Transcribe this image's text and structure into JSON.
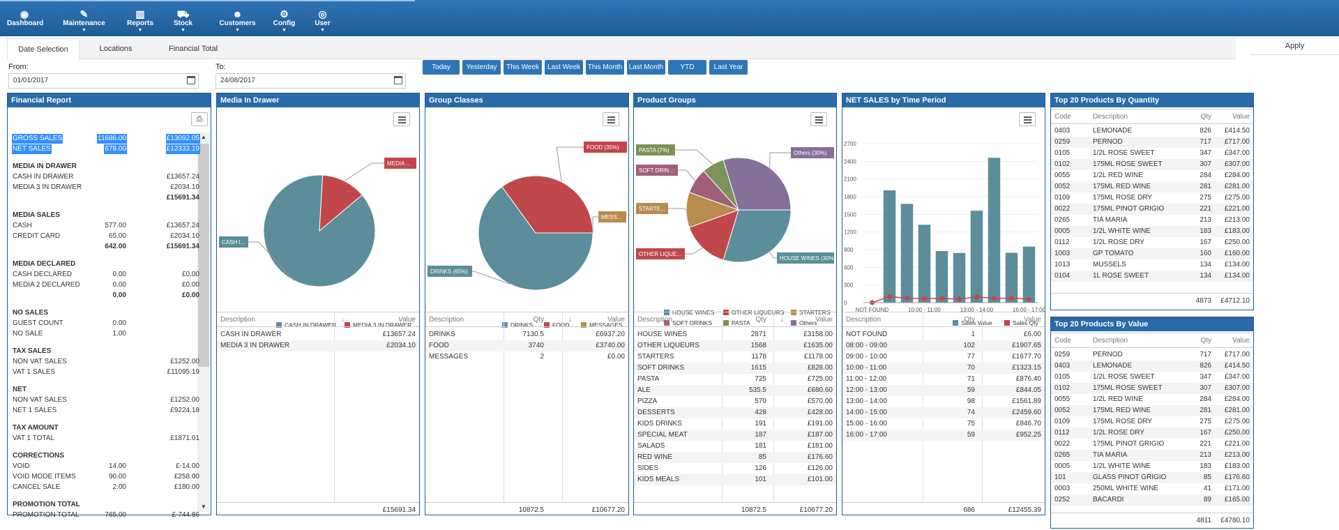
{
  "nav": [
    {
      "label": "Dashboard",
      "icon": "dashboard-icon",
      "glyph": "◉",
      "caret": false
    },
    {
      "label": "Maintenance",
      "icon": "wrench-icon",
      "glyph": "✎",
      "caret": true
    },
    {
      "label": "Reports",
      "icon": "bar-chart-icon",
      "glyph": "▥",
      "caret": true
    },
    {
      "label": "Stock",
      "icon": "truck-icon",
      "glyph": "⛟",
      "caret": true
    },
    {
      "label": "Customers",
      "icon": "users-icon",
      "glyph": "☻",
      "caret": true
    },
    {
      "label": "Config",
      "icon": "gear-icon",
      "glyph": "⚙",
      "caret": true
    },
    {
      "label": "User",
      "icon": "user-icon",
      "glyph": "◎",
      "caret": true
    }
  ],
  "tabs": [
    "Date Selection",
    "Locations",
    "Financial Total"
  ],
  "apply": "Apply",
  "from_label": "From:",
  "from_value": "01/01/2017",
  "to_label": "To:",
  "to_value": "24/08/2017",
  "quick": [
    "Today",
    "Yesterday",
    "This Week",
    "Last Week",
    "This Month",
    "Last Month",
    "YTD",
    "Last Year"
  ],
  "financial": {
    "title": "Financial Report",
    "rows": [
      {
        "a": "GROSS SALES",
        "b": "11686.00",
        "c": "£13092.05",
        "sel": true
      },
      {
        "a": "NET SALES",
        "b": "678.00",
        "c": "£12333.19",
        "sel": true
      },
      {
        "gap": true
      },
      {
        "a": "MEDIA IN DRAWER",
        "h": true
      },
      {
        "a": "CASH IN DRAWER",
        "c": "£13657.24"
      },
      {
        "a": "MEDIA 3 IN DRAWER",
        "c": "£2034.10"
      },
      {
        "c": "£15691.34",
        "bold": true
      },
      {
        "gap": true
      },
      {
        "a": "MEDIA SALES",
        "h": true
      },
      {
        "a": "CASH",
        "b": "577.00",
        "c": "£13657.24"
      },
      {
        "a": "CREDIT CARD",
        "b": "65.00",
        "c": "£2034.10"
      },
      {
        "b": "642.00",
        "c": "£15691.34",
        "bold": true
      },
      {
        "gap": true
      },
      {
        "a": "MEDIA DECLARED",
        "h": true
      },
      {
        "a": "CASH DECLARED",
        "b": "0.00",
        "c": "£0.00"
      },
      {
        "a": "MEDIA 2 DECLARED",
        "b": "0.00",
        "c": "£0.00"
      },
      {
        "b": "0.00",
        "c": "£0.00",
        "bold": true
      },
      {
        "gap": true
      },
      {
        "a": "NO SALES",
        "h": true
      },
      {
        "a": "GUEST COUNT",
        "b": "0.00"
      },
      {
        "a": "NO SALE",
        "b": "1.00"
      },
      {
        "gap": true
      },
      {
        "a": "TAX SALES",
        "h": true
      },
      {
        "a": "NON VAT SALES",
        "c": "£1252.00"
      },
      {
        "a": "VAT 1 SALES",
        "c": "£11095.19"
      },
      {
        "gap": true
      },
      {
        "a": "NET",
        "h": true
      },
      {
        "a": "NON VAT SALES",
        "c": "£1252.00"
      },
      {
        "a": "NET 1 SALES",
        "c": "£9224.18"
      },
      {
        "gap": true
      },
      {
        "a": "TAX AMOUNT",
        "h": true
      },
      {
        "a": "VAT 1 TOTAL",
        "c": "£1871.01"
      },
      {
        "gap": true
      },
      {
        "a": "CORRECTIONS",
        "h": true
      },
      {
        "a": "VOID",
        "b": "14.00",
        "c": "£-14.00"
      },
      {
        "a": "VOID MODE ITEMS",
        "b": "90.00",
        "c": "£258.00"
      },
      {
        "a": "CANCEL SALE",
        "b": "2.00",
        "c": "£180.00"
      },
      {
        "gap": true
      },
      {
        "a": "PROMOTION TOTAL",
        "h": true
      },
      {
        "a": "PROMOTION TOTAL",
        "b": "765.00",
        "c": "£-744.86"
      }
    ]
  },
  "colors": {
    "teal": "#5b8d9a",
    "red": "#c0474c",
    "tan": "#b88c4e",
    "plum": "#a25f7a",
    "olive": "#7d9259",
    "purple": "#86709a"
  },
  "media": {
    "title": "Media In Drawer",
    "slices": [
      {
        "name": "CASH IN DRAWER",
        "value": 13657.24,
        "color": "#5b8d9a",
        "callout": "CASH I..."
      },
      {
        "name": "MEDIA 3 IN DRAWER",
        "value": 2034.1,
        "color": "#c0474c",
        "callout": "MEDIA ..."
      }
    ],
    "headers": {
      "d": "Description",
      "v": "Value"
    },
    "rows": [
      {
        "d": "CASH IN DRAWER",
        "v": "£13657.24"
      },
      {
        "d": "MEDIA 3 IN DRAWER",
        "v": "£2034.10"
      }
    ],
    "total": "£15691.34"
  },
  "groups": {
    "title": "Group Classes",
    "slices": [
      {
        "name": "DRINKS",
        "value": 65,
        "color": "#5b8d9a",
        "callout": "DRINKS (65%)"
      },
      {
        "name": "FOOD",
        "value": 35,
        "color": "#c0474c",
        "callout": "FOOD (35%)"
      },
      {
        "name": "MESSAGES",
        "value": 0.001,
        "color": "#b88c4e",
        "callout": "MESS..."
      }
    ],
    "headers": {
      "d": "Description",
      "q": "Qty",
      "v": "Value"
    },
    "rows": [
      {
        "d": "DRINKS",
        "q": "7130.5",
        "v": "£6937.20"
      },
      {
        "d": "FOOD",
        "q": "3740",
        "v": "£3740.00"
      },
      {
        "d": "MESSAGES",
        "q": "2",
        "v": "£0.00"
      }
    ],
    "total_q": "10872.5",
    "total_v": "£10677.20"
  },
  "products": {
    "title": "Product Groups",
    "slices": [
      {
        "name": "HOUSE WINES",
        "value": 30,
        "color": "#5b8d9a",
        "callout": "HOUSE WINES (30%)"
      },
      {
        "name": "OTHER LIQUEURS",
        "value": 15,
        "color": "#c0474c",
        "callout": "OTHER LIQUE..."
      },
      {
        "name": "STARTERS",
        "value": 11,
        "color": "#b88c4e",
        "callout": "STARTE..."
      },
      {
        "name": "SOFT DRINKS",
        "value": 8,
        "color": "#a25f7a",
        "callout": "SOFT DRIN..."
      },
      {
        "name": "PASTA",
        "value": 7,
        "color": "#7d9259",
        "callout": "PASTA (7%)"
      },
      {
        "name": "Others",
        "value": 30,
        "color": "#86709a",
        "callout": "Others (30%)"
      }
    ],
    "headers": {
      "d": "Description",
      "q": "Qty",
      "v": "Value"
    },
    "rows": [
      {
        "d": "HOUSE WINES",
        "q": "2871",
        "v": "£3158.00"
      },
      {
        "d": "OTHER LIQUEURS",
        "q": "1568",
        "v": "£1635.00"
      },
      {
        "d": "STARTERS",
        "q": "1178",
        "v": "£1178.00"
      },
      {
        "d": "SOFT DRINKS",
        "q": "1615",
        "v": "£828.00"
      },
      {
        "d": "PASTA",
        "q": "725",
        "v": "£725.00"
      },
      {
        "d": "ALE",
        "q": "535.5",
        "v": "£680.60"
      },
      {
        "d": "PIZZA",
        "q": "570",
        "v": "£570.00"
      },
      {
        "d": "DESSERTS",
        "q": "428",
        "v": "£428.00"
      },
      {
        "d": "KIDS DRINKS",
        "q": "191",
        "v": "£191.00"
      },
      {
        "d": "SPECIAL MEAT",
        "q": "187",
        "v": "£187.00"
      },
      {
        "d": "SALADS",
        "q": "181",
        "v": "£181.00"
      },
      {
        "d": "RED WINE",
        "q": "85",
        "v": "£176.60"
      },
      {
        "d": "SIDES",
        "q": "126",
        "v": "£126.00"
      },
      {
        "d": "KIDS MEALS",
        "q": "101",
        "v": "£101.00"
      }
    ],
    "total_q": "10872.5",
    "total_v": "£10677.20"
  },
  "timeperiod": {
    "title": "NET SALES by Time Period",
    "headers": {
      "d": "Description",
      "q": "Qty",
      "v": "Value"
    },
    "rows": [
      {
        "d": "NOT FOUND",
        "q": "1",
        "v": "£6.00"
      },
      {
        "d": "08:00 - 09:00",
        "q": "102",
        "v": "£1907.65"
      },
      {
        "d": "09:00 - 10:00",
        "q": "77",
        "v": "£1677.70"
      },
      {
        "d": "10:00 - 11:00",
        "q": "70",
        "v": "£1323.15"
      },
      {
        "d": "11:00 - 12:00",
        "q": "71",
        "v": "£876.40"
      },
      {
        "d": "12:00 - 13:00",
        "q": "59",
        "v": "£844.05"
      },
      {
        "d": "13:00 - 14:00",
        "q": "98",
        "v": "£1561.89"
      },
      {
        "d": "14:00 - 15:00",
        "q": "74",
        "v": "£2459.60"
      },
      {
        "d": "15:00 - 16:00",
        "q": "75",
        "v": "£846.70"
      },
      {
        "d": "16:00 - 17:00",
        "q": "59",
        "v": "£952.25"
      }
    ],
    "total_q": "686",
    "total_v": "£12455.39"
  },
  "chart_data": {
    "type": "bar",
    "title": "NET SALES by Time Period",
    "categories": [
      "NOT FOUND",
      "08:00 - 09:00",
      "09:00 - 10:00",
      "10:00 - 11:00",
      "11:00 - 12:00",
      "12:00 - 13:00",
      "13:00 - 14:00",
      "14:00 - 15:00",
      "15:00 - 16:00",
      "16:00 - 17:00"
    ],
    "tick_labels": [
      "NOT FOUND",
      "10:00 - 11:00",
      "13:00 - 14:00",
      "16:00 - 17:00"
    ],
    "series": [
      {
        "name": "Sales Value",
        "values": [
          6,
          1907.65,
          1677.7,
          1323.15,
          876.4,
          844.05,
          1561.89,
          2459.6,
          846.7,
          952.25
        ],
        "color": "#5b8d9a"
      },
      {
        "name": "Sales Qty",
        "values": [
          1,
          102,
          77,
          70,
          71,
          59,
          98,
          74,
          75,
          59
        ],
        "color": "#c0474c"
      }
    ],
    "yticks": [
      "0",
      "300",
      "600",
      "900",
      "1200",
      "1500",
      "1800",
      "2100",
      "2400",
      "2700"
    ],
    "ylim": [
      0,
      2700
    ]
  },
  "topqty": {
    "title": "Top 20 Products By Quantity",
    "headers": {
      "c": "Code",
      "d": "Description",
      "q": "Qty",
      "v": "Value"
    },
    "rows": [
      {
        "c": "0403",
        "d": "LEMONADE",
        "q": "826",
        "v": "£414.50"
      },
      {
        "c": "0259",
        "d": "PERNOD",
        "q": "717",
        "v": "£717.00"
      },
      {
        "c": "0105",
        "d": "1/2L ROSE SWEET",
        "q": "347",
        "v": "£347.00"
      },
      {
        "c": "0102",
        "d": "175ML ROSE SWEET",
        "q": "307",
        "v": "£307.00"
      },
      {
        "c": "0055",
        "d": "1/2L RED WINE",
        "q": "284",
        "v": "£284.00"
      },
      {
        "c": "0052",
        "d": "175ML RED WINE",
        "q": "281",
        "v": "£281.00"
      },
      {
        "c": "0109",
        "d": "175ML ROSE DRY",
        "q": "275",
        "v": "£275.00"
      },
      {
        "c": "0022",
        "d": "175ML PINOT GRIGIO",
        "q": "221",
        "v": "£221.00"
      },
      {
        "c": "0265",
        "d": "TIA MARIA",
        "q": "213",
        "v": "£213.00"
      },
      {
        "c": "0005",
        "d": "1/2L WHITE WINE",
        "q": "183",
        "v": "£183.00"
      },
      {
        "c": "0112",
        "d": "1/2L ROSE DRY",
        "q": "167",
        "v": "£250.00"
      },
      {
        "c": "1003",
        "d": "GP TOMATO",
        "q": "160",
        "v": "£160.00"
      },
      {
        "c": "1013",
        "d": "MUSSELS",
        "q": "134",
        "v": "£134.00"
      },
      {
        "c": "0104",
        "d": "1L ROSE SWEET",
        "q": "134",
        "v": "£134.00"
      }
    ],
    "total_q": "4873",
    "total_v": "£4712.10"
  },
  "topval": {
    "title": "Top 20 Products By Value",
    "headers": {
      "c": "Code",
      "d": "Description",
      "q": "Qty",
      "v": "Value"
    },
    "rows": [
      {
        "c": "0259",
        "d": "PERNOD",
        "q": "717",
        "v": "£717.00"
      },
      {
        "c": "0403",
        "d": "LEMONADE",
        "q": "826",
        "v": "£414.50"
      },
      {
        "c": "0105",
        "d": "1/2L ROSE SWEET",
        "q": "347",
        "v": "£347.00"
      },
      {
        "c": "0102",
        "d": "175ML ROSE SWEET",
        "q": "307",
        "v": "£307.00"
      },
      {
        "c": "0055",
        "d": "1/2L RED WINE",
        "q": "284",
        "v": "£284.00"
      },
      {
        "c": "0052",
        "d": "175ML RED WINE",
        "q": "281",
        "v": "£281.00"
      },
      {
        "c": "0109",
        "d": "175ML ROSE DRY",
        "q": "275",
        "v": "£275.00"
      },
      {
        "c": "0112",
        "d": "1/2L ROSE DRY",
        "q": "167",
        "v": "£250.00"
      },
      {
        "c": "0022",
        "d": "175ML PINOT GRIGIO",
        "q": "221",
        "v": "£221.00"
      },
      {
        "c": "0265",
        "d": "TIA MARIA",
        "q": "213",
        "v": "£213.00"
      },
      {
        "c": "0005",
        "d": "1/2L WHITE WINE",
        "q": "183",
        "v": "£183.00"
      },
      {
        "c": "101",
        "d": "GLASS PINOT GRIGIO",
        "q": "85",
        "v": "£176.60"
      },
      {
        "c": "0003",
        "d": "250ML WHITE WINE",
        "q": "41",
        "v": "£171.00"
      },
      {
        "c": "0252",
        "d": "BACARDI",
        "q": "89",
        "v": "£165.00"
      }
    ],
    "total_q": "4811",
    "total_v": "£4780.10"
  }
}
